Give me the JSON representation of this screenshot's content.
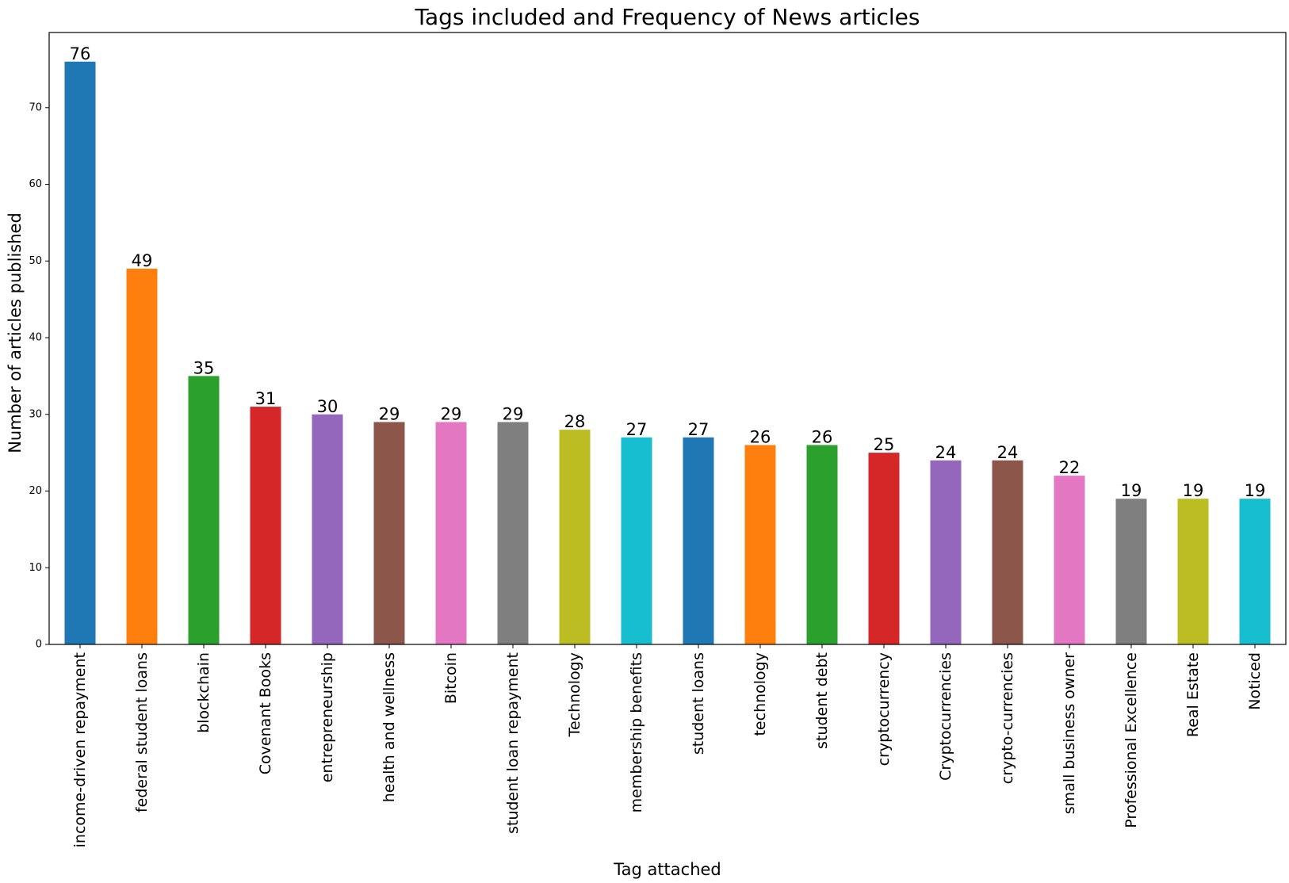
{
  "chart_data": {
    "type": "bar",
    "title": "Tags included and Frequency of News articles",
    "xlabel": "Tag attached",
    "ylabel": "Number of articles published",
    "categories": [
      "income-driven repayment",
      "federal student loans",
      "blockchain",
      "Covenant Books",
      "entrepreneurship",
      "health and wellness",
      "Bitcoin",
      "student loan repayment",
      "Technology",
      "membership benefits",
      "student loans",
      "technology",
      "student debt",
      "cryptocurrency",
      "Cryptocurrencies",
      "crypto-currencies",
      "small business owner",
      "Professional Excellence",
      "Real Estate",
      "Noticed"
    ],
    "values": [
      76,
      49,
      35,
      31,
      30,
      29,
      29,
      29,
      28,
      27,
      27,
      26,
      26,
      25,
      24,
      24,
      22,
      19,
      19,
      19
    ],
    "data_labels": [
      "76",
      "49",
      "35",
      "31",
      "30",
      "29",
      "29",
      "29",
      "28",
      "27",
      "27",
      "26",
      "26",
      "25",
      "24",
      "24",
      "22",
      "19",
      "19",
      "19"
    ],
    "colors": [
      "#1f77b4",
      "#ff7f0e",
      "#2ca02c",
      "#d62728",
      "#9467bd",
      "#8c564b",
      "#e377c2",
      "#7f7f7f",
      "#bcbd22",
      "#17becf"
    ],
    "ylim": [
      0,
      79.8
    ],
    "yticks": [
      0,
      10,
      20,
      30,
      40,
      50,
      60,
      70
    ],
    "ytick_labels": [
      "0",
      "10",
      "20",
      "30",
      "40",
      "50",
      "60",
      "70"
    ],
    "grid": false,
    "legend": "none"
  }
}
